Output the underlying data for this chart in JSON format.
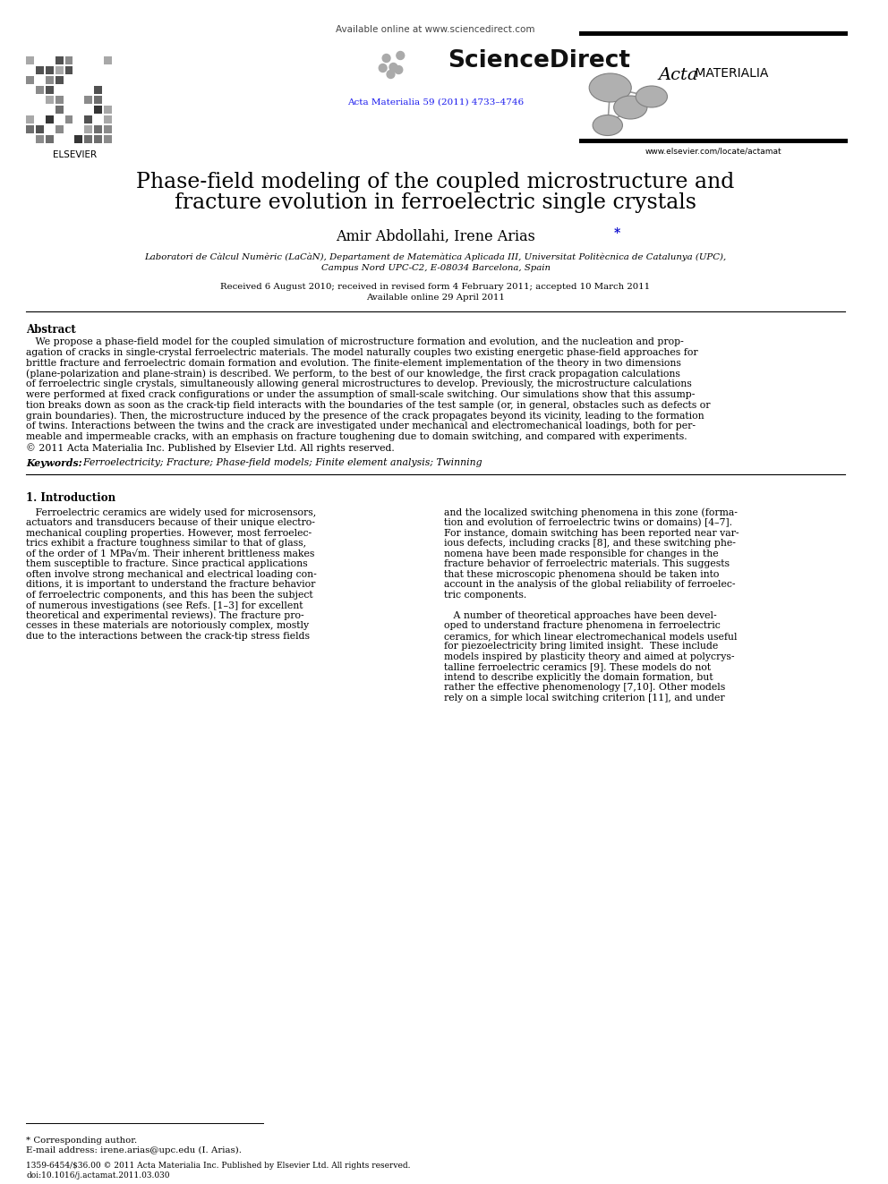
{
  "bg_color": "#ffffff",
  "title_line1": "Phase-field modeling of the coupled microstructure and",
  "title_line2": "fracture evolution in ferroelectric single crystals",
  "affiliation_line1": "Laboratori de Càlcul Numèric (LaCàN), Departament de Matemàtica Aplicada III, Universitat Politècnica de Catalunya (UPC),",
  "affiliation_line2": "Campus Nord UPC-C2, E-08034 Barcelona, Spain",
  "received": "Received 6 August 2010; received in revised form 4 February 2011; accepted 10 March 2011",
  "available": "Available online 29 April 2011",
  "journal_ref": "Acta Materialia 59 (2011) 4733–4746",
  "available_online_header": "Available online at www.sciencedirect.com",
  "elsevier_text": "ELSEVIER",
  "website": "www.elsevier.com/locate/actamat",
  "abstract_title": "Abstract",
  "keywords_label": "Keywords:",
  "keywords_text": "Ferroelectricity; Fracture; Phase-field models; Finite element analysis; Twinning",
  "intro_title": "1. Introduction",
  "footnote_star": "* Corresponding author.",
  "footnote_email": "E-mail address: irene.arias@upc.edu (I. Arias).",
  "copyright_text": "1359-6454/$36.00 © 2011 Acta Materialia Inc. Published by Elsevier Ltd. All rights reserved.",
  "doi_text": "doi:10.1016/j.actamat.2011.03.030",
  "abstract_lines": [
    "   We propose a phase-field model for the coupled simulation of microstructure formation and evolution, and the nucleation and prop-",
    "agation of cracks in single-crystal ferroelectric materials. The model naturally couples two existing energetic phase-field approaches for",
    "brittle fracture and ferroelectric domain formation and evolution. The finite-element implementation of the theory in two dimensions",
    "(plane-polarization and plane-strain) is described. We perform, to the best of our knowledge, the first crack propagation calculations",
    "of ferroelectric single crystals, simultaneously allowing general microstructures to develop. Previously, the microstructure calculations",
    "were performed at fixed crack configurations or under the assumption of small-scale switching. Our simulations show that this assump-",
    "tion breaks down as soon as the crack-tip field interacts with the boundaries of the test sample (or, in general, obstacles such as defects or",
    "grain boundaries). Then, the microstructure induced by the presence of the crack propagates beyond its vicinity, leading to the formation",
    "of twins. Interactions between the twins and the crack are investigated under mechanical and electromechanical loadings, both for per-",
    "meable and impermeable cracks, with an emphasis on fracture toughening due to domain switching, and compared with experiments.",
    "© 2011 Acta Materialia Inc. Published by Elsevier Ltd. All rights reserved."
  ],
  "intro_col1_lines": [
    "   Ferroelectric ceramics are widely used for microsensors,",
    "actuators and transducers because of their unique electro-",
    "mechanical coupling properties. However, most ferroelec-",
    "trics exhibit a fracture toughness similar to that of glass,",
    "of the order of 1 MPa√m. Their inherent brittleness makes",
    "them susceptible to fracture. Since practical applications",
    "often involve strong mechanical and electrical loading con-",
    "ditions, it is important to understand the fracture behavior",
    "of ferroelectric components, and this has been the subject",
    "of numerous investigations (see Refs. [1–3] for excellent",
    "theoretical and experimental reviews). The fracture pro-",
    "cesses in these materials are notoriously complex, mostly",
    "due to the interactions between the crack-tip stress fields"
  ],
  "intro_col2_lines": [
    "and the localized switching phenomena in this zone (forma-",
    "tion and evolution of ferroelectric twins or domains) [4–7].",
    "For instance, domain switching has been reported near var-",
    "ious defects, including cracks [8], and these switching phe-",
    "nomena have been made responsible for changes in the",
    "fracture behavior of ferroelectric materials. This suggests",
    "that these microscopic phenomena should be taken into",
    "account in the analysis of the global reliability of ferroelec-",
    "tric components.",
    "",
    "   A number of theoretical approaches have been devel-",
    "oped to understand fracture phenomena in ferroelectric",
    "ceramics, for which linear electromechanical models useful",
    "for piezoelectricity bring limited insight.  These include",
    "models inspired by plasticity theory and aimed at polycrys-",
    "talline ferroelectric ceramics [9]. These models do not",
    "intend to describe explicitly the domain formation, but",
    "rather the effective phenomenology [7,10]. Other models",
    "rely on a simple local switching criterion [11], and under"
  ]
}
